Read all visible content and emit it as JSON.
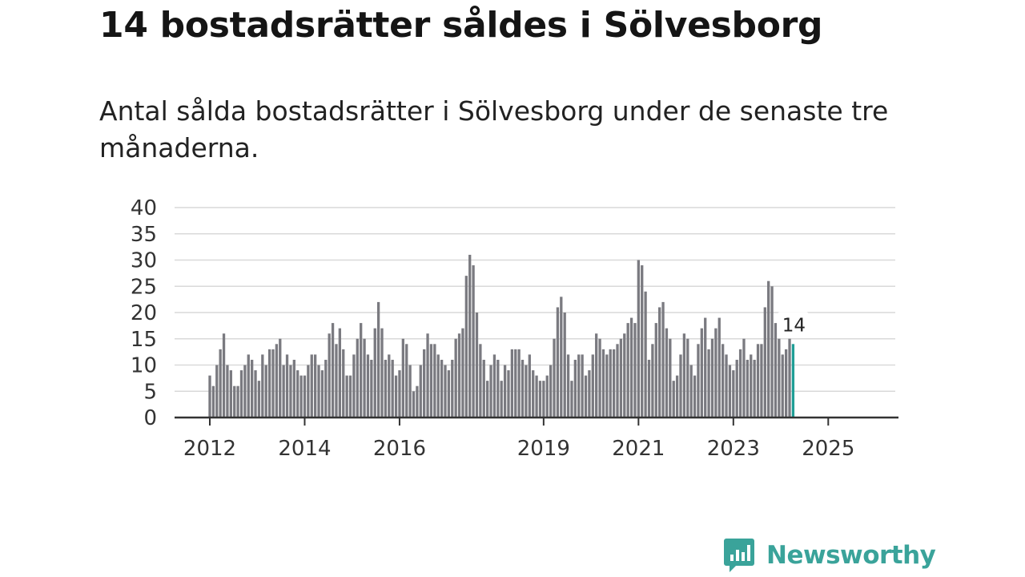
{
  "title": "14 bostadsrätter såldes i Sölvesborg",
  "subtitle": "Antal sålda bostadsrätter i Sölvesborg under de senaste tre månaderna.",
  "brand": {
    "name": "Newsworthy",
    "color": "#3aa39a",
    "icon": "newsworthy-logo-icon"
  },
  "chart_data": {
    "type": "bar",
    "title": "",
    "xlabel": "",
    "ylabel": "",
    "ylim": [
      0,
      40
    ],
    "yticks": [
      0,
      5,
      10,
      15,
      20,
      25,
      30,
      35,
      40
    ],
    "grid": true,
    "bar_color": "#7a7a80",
    "highlight_color": "#1f9e96",
    "highlight_label": "14",
    "xtick_labels": [
      {
        "label": "2012",
        "index": 0
      },
      {
        "label": "2014",
        "index": 27
      },
      {
        "label": "2016",
        "index": 54
      },
      {
        "label": "2019",
        "index": 95
      },
      {
        "label": "2021",
        "index": 122
      },
      {
        "label": "2023",
        "index": 149
      },
      {
        "label": "2025",
        "index": 176
      }
    ],
    "values": [
      8,
      6,
      10,
      13,
      16,
      10,
      9,
      6,
      6,
      9,
      10,
      12,
      11,
      9,
      7,
      12,
      10,
      13,
      13,
      14,
      15,
      10,
      12,
      10,
      11,
      9,
      8,
      8,
      10,
      12,
      12,
      10,
      9,
      11,
      16,
      18,
      14,
      17,
      13,
      8,
      8,
      12,
      15,
      18,
      15,
      12,
      11,
      17,
      22,
      17,
      11,
      12,
      11,
      8,
      9,
      15,
      14,
      10,
      5,
      6,
      10,
      13,
      16,
      14,
      14,
      12,
      11,
      10,
      9,
      11,
      15,
      16,
      17,
      27,
      31,
      29,
      20,
      14,
      11,
      7,
      10,
      12,
      11,
      7,
      10,
      9,
      13,
      13,
      13,
      11,
      10,
      12,
      9,
      8,
      7,
      7,
      8,
      10,
      15,
      21,
      23,
      20,
      12,
      7,
      11,
      12,
      12,
      8,
      9,
      12,
      16,
      15,
      13,
      12,
      13,
      13,
      14,
      15,
      16,
      18,
      19,
      18,
      30,
      29,
      24,
      11,
      14,
      18,
      21,
      22,
      17,
      15,
      7,
      8,
      12,
      16,
      15,
      10,
      8,
      14,
      17,
      19,
      13,
      15,
      17,
      19,
      14,
      12,
      10,
      9,
      11,
      13,
      15,
      11,
      12,
      11,
      14,
      14,
      21,
      26,
      25,
      18,
      15,
      12,
      13,
      15,
      14
    ]
  }
}
